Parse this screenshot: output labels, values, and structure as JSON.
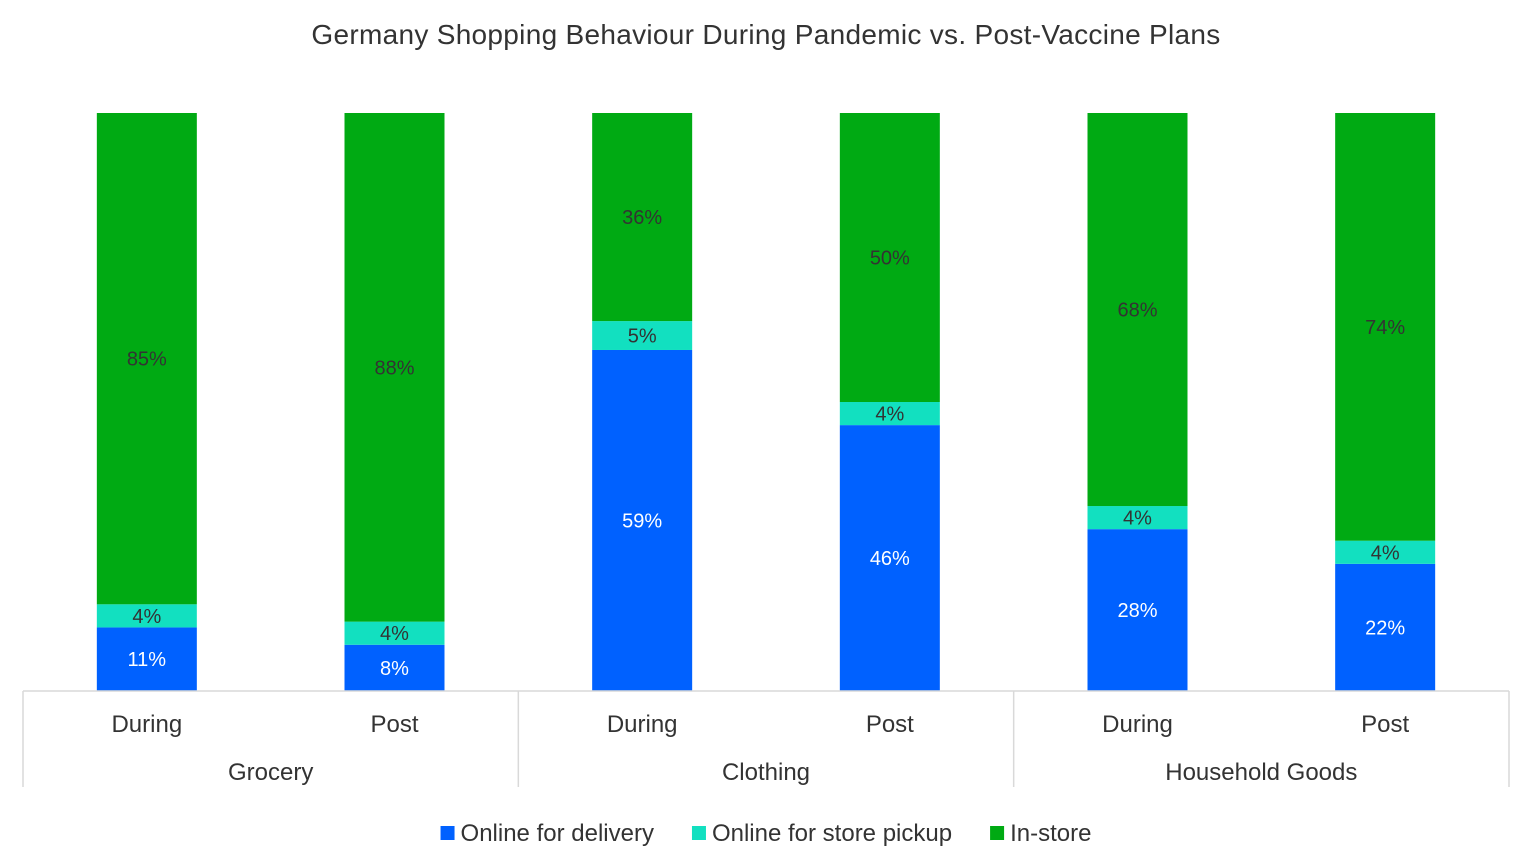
{
  "chart_data": {
    "type": "bar",
    "stacked": true,
    "title": "Germany Shopping Behaviour During Pandemic vs. Post-Vaccine Plans",
    "groups": [
      "Grocery",
      "Clothing",
      "Household Goods"
    ],
    "categories": [
      "During",
      "Post",
      "During",
      "Post",
      "During",
      "Post"
    ],
    "series": [
      {
        "name": "Online for delivery",
        "color": "#0061ff",
        "label_color": "#ffffff",
        "values": [
          11,
          8,
          59,
          46,
          28,
          22
        ],
        "labels": [
          "11%",
          "8%",
          "59%",
          "46%",
          "28%",
          "22%"
        ]
      },
      {
        "name": "Online for store pickup",
        "color": "#12e0c0",
        "label_color": "#333333",
        "values": [
          4,
          4,
          5,
          4,
          4,
          4
        ],
        "labels": [
          "4%",
          "4%",
          "5%",
          "4%",
          "4%",
          "4%"
        ]
      },
      {
        "name": "In-store",
        "color": "#00aa13",
        "label_color": "#333333",
        "values": [
          85,
          88,
          36,
          50,
          68,
          74
        ],
        "labels": [
          "85%",
          "88%",
          "36%",
          "50%",
          "68%",
          "74%"
        ]
      }
    ],
    "ylim": [
      0,
      100
    ],
    "grid": false,
    "legend_position": "bottom"
  }
}
